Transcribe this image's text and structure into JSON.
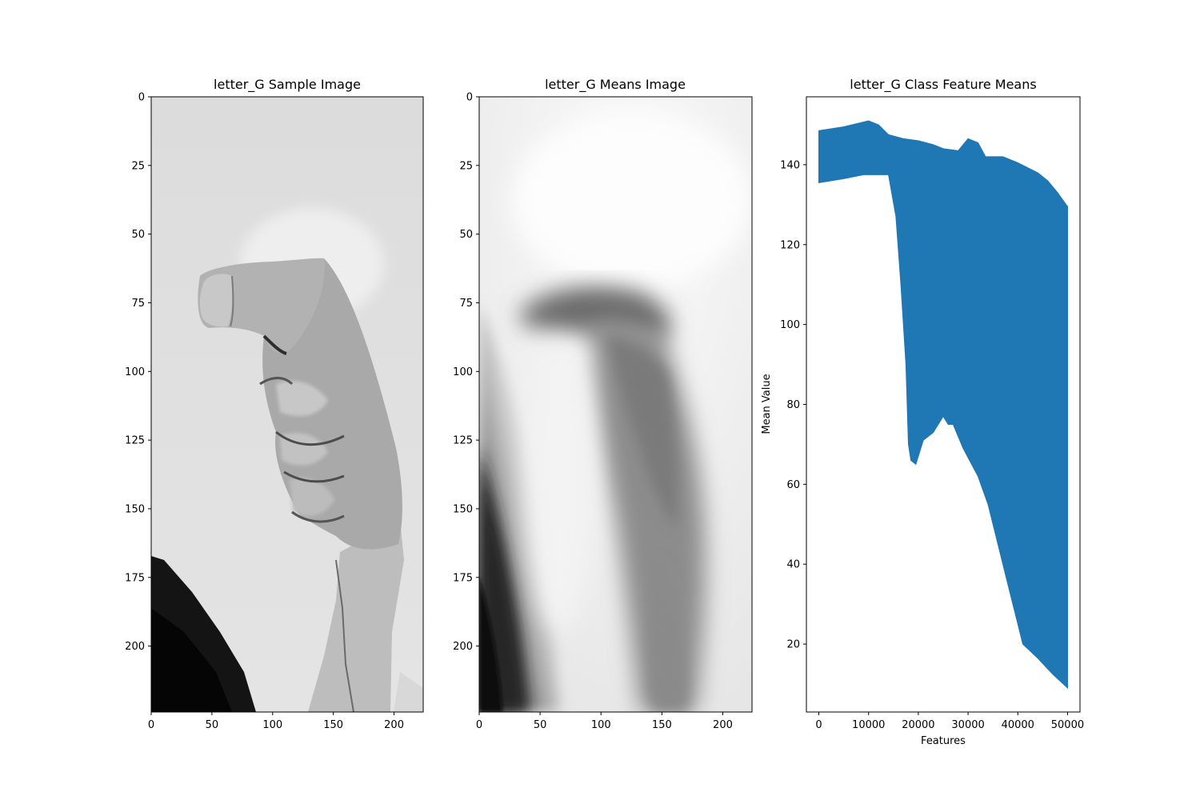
{
  "chart_data": [
    {
      "type": "image",
      "title": "letter_G Sample Image",
      "xlabel": "",
      "ylabel": "",
      "xlim": [
        0,
        224
      ],
      "ylim": [
        224,
        0
      ],
      "x_ticks": [
        0,
        50,
        100,
        150,
        200
      ],
      "y_ticks": [
        0,
        25,
        50,
        75,
        100,
        125,
        150,
        175,
        200
      ],
      "colormap": "gray",
      "content": "grayscale photo of a hand signing letter G (index finger pointing left, fist, wrist going down), dark sleeve at lower-left"
    },
    {
      "type": "image",
      "title": "letter_G Means Image",
      "xlabel": "",
      "ylabel": "",
      "xlim": [
        0,
        224
      ],
      "ylim": [
        224,
        0
      ],
      "x_ticks": [
        0,
        50,
        100,
        150,
        200
      ],
      "y_ticks": [
        0,
        25,
        50,
        75,
        100,
        125,
        150,
        175,
        200
      ],
      "colormap": "gray",
      "content": "blurred grayscale mean of class images: light background, dark diagonal region lower-left, grey blurred hand shape in centre"
    },
    {
      "type": "area",
      "title": "letter_G Class Feature Means",
      "xlabel": "Features",
      "ylabel": "Mean Value",
      "xlim": [
        -2500,
        52500
      ],
      "ylim": [
        3,
        157
      ],
      "x_ticks": [
        0,
        10000,
        20000,
        30000,
        40000,
        50000
      ],
      "y_ticks": [
        20,
        40,
        60,
        80,
        100,
        120,
        140
      ],
      "color": "#1f77b4",
      "upper_envelope": [
        [
          0,
          148.5
        ],
        [
          5000,
          149.5
        ],
        [
          10000,
          151
        ],
        [
          12000,
          150
        ],
        [
          14000,
          147.5
        ],
        [
          17000,
          146.5
        ],
        [
          20000,
          146
        ],
        [
          23000,
          145
        ],
        [
          25000,
          144
        ],
        [
          28000,
          143.5
        ],
        [
          30000,
          146.5
        ],
        [
          32000,
          145.5
        ],
        [
          33500,
          142
        ],
        [
          37000,
          142
        ],
        [
          40000,
          140.5
        ],
        [
          44000,
          138
        ],
        [
          46000,
          136
        ],
        [
          48000,
          133
        ],
        [
          50000,
          129.5
        ]
      ],
      "lower_envelope": [
        [
          0,
          135.5
        ],
        [
          5000,
          136.5
        ],
        [
          9000,
          137.5
        ],
        [
          14000,
          137.5
        ],
        [
          15500,
          127
        ],
        [
          16500,
          110
        ],
        [
          17500,
          90
        ],
        [
          18000,
          70
        ],
        [
          18500,
          66
        ],
        [
          19500,
          65
        ],
        [
          21000,
          71
        ],
        [
          23000,
          73
        ],
        [
          25000,
          77
        ],
        [
          26000,
          75
        ],
        [
          27000,
          75
        ],
        [
          29000,
          69
        ],
        [
          32000,
          62
        ],
        [
          34000,
          55
        ],
        [
          36000,
          45
        ],
        [
          38000,
          35
        ],
        [
          40000,
          25
        ],
        [
          41000,
          20
        ],
        [
          44000,
          16.5
        ],
        [
          47000,
          12.5
        ],
        [
          50000,
          9
        ]
      ]
    }
  ]
}
